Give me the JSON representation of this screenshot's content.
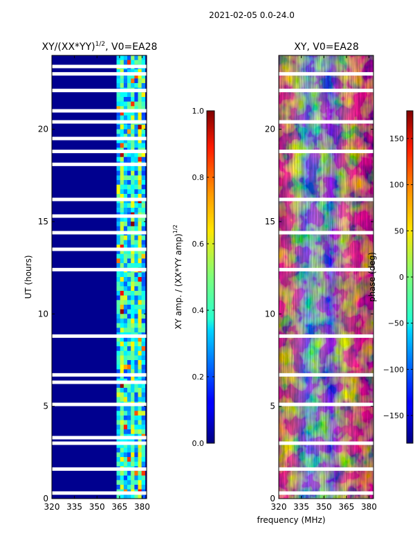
{
  "figure_title": "2021-02-05 0.0-24.0",
  "shared_xlabel": "frequency (MHz)",
  "chart_data": [
    {
      "type": "heatmap",
      "title": "XY/(XX*YY)",
      "title_exponent": "1/2",
      "title_suffix": ", V0=EA28",
      "ylabel": "UT (hours)",
      "xlim": [
        320,
        383
      ],
      "ylim": [
        0,
        24
      ],
      "xticks": [
        320,
        335,
        350,
        365,
        380
      ],
      "yticks": [
        0,
        5,
        10,
        15,
        20
      ],
      "colorscale": "jet",
      "background": "#00008f",
      "active_band_mhz": [
        363,
        382
      ],
      "colorbar": {
        "label": "XY amp. / (XX*YY amp)",
        "label_exponent": "1/2",
        "range": [
          0.0,
          1.0
        ],
        "ticks": [
          "0.0",
          "0.2",
          "0.4",
          "0.6",
          "0.8",
          "1.0"
        ]
      },
      "flagged_hours": [
        0.3,
        1.6,
        3.0,
        3.3,
        5.1,
        6.3,
        6.7,
        8.8,
        12.4,
        13.5,
        14.4,
        15.3,
        16.2,
        18.1,
        18.8,
        19.5,
        20.4,
        21.0,
        22.1,
        23.0,
        23.4
      ]
    },
    {
      "type": "heatmap",
      "title": "XY, V0=EA28",
      "xlim": [
        320,
        383
      ],
      "ylim": [
        0,
        24
      ],
      "xticks": [
        320,
        335,
        350,
        365,
        380
      ],
      "yticks": [
        0,
        5,
        10,
        15,
        20
      ],
      "colorscale": "jet",
      "colorbar": {
        "label": "phase (deg)",
        "range": [
          -180,
          180
        ],
        "ticks": [
          "−150",
          "−100",
          "−50",
          "0",
          "50",
          "100",
          "150"
        ],
        "tick_values": [
          -150,
          -100,
          -50,
          0,
          50,
          100,
          150
        ]
      },
      "flagged_hours": [
        0.3,
        1.6,
        3.0,
        5.1,
        6.7,
        8.8,
        12.4,
        14.4,
        16.2,
        18.8,
        20.4,
        22.1,
        23.0
      ]
    }
  ]
}
